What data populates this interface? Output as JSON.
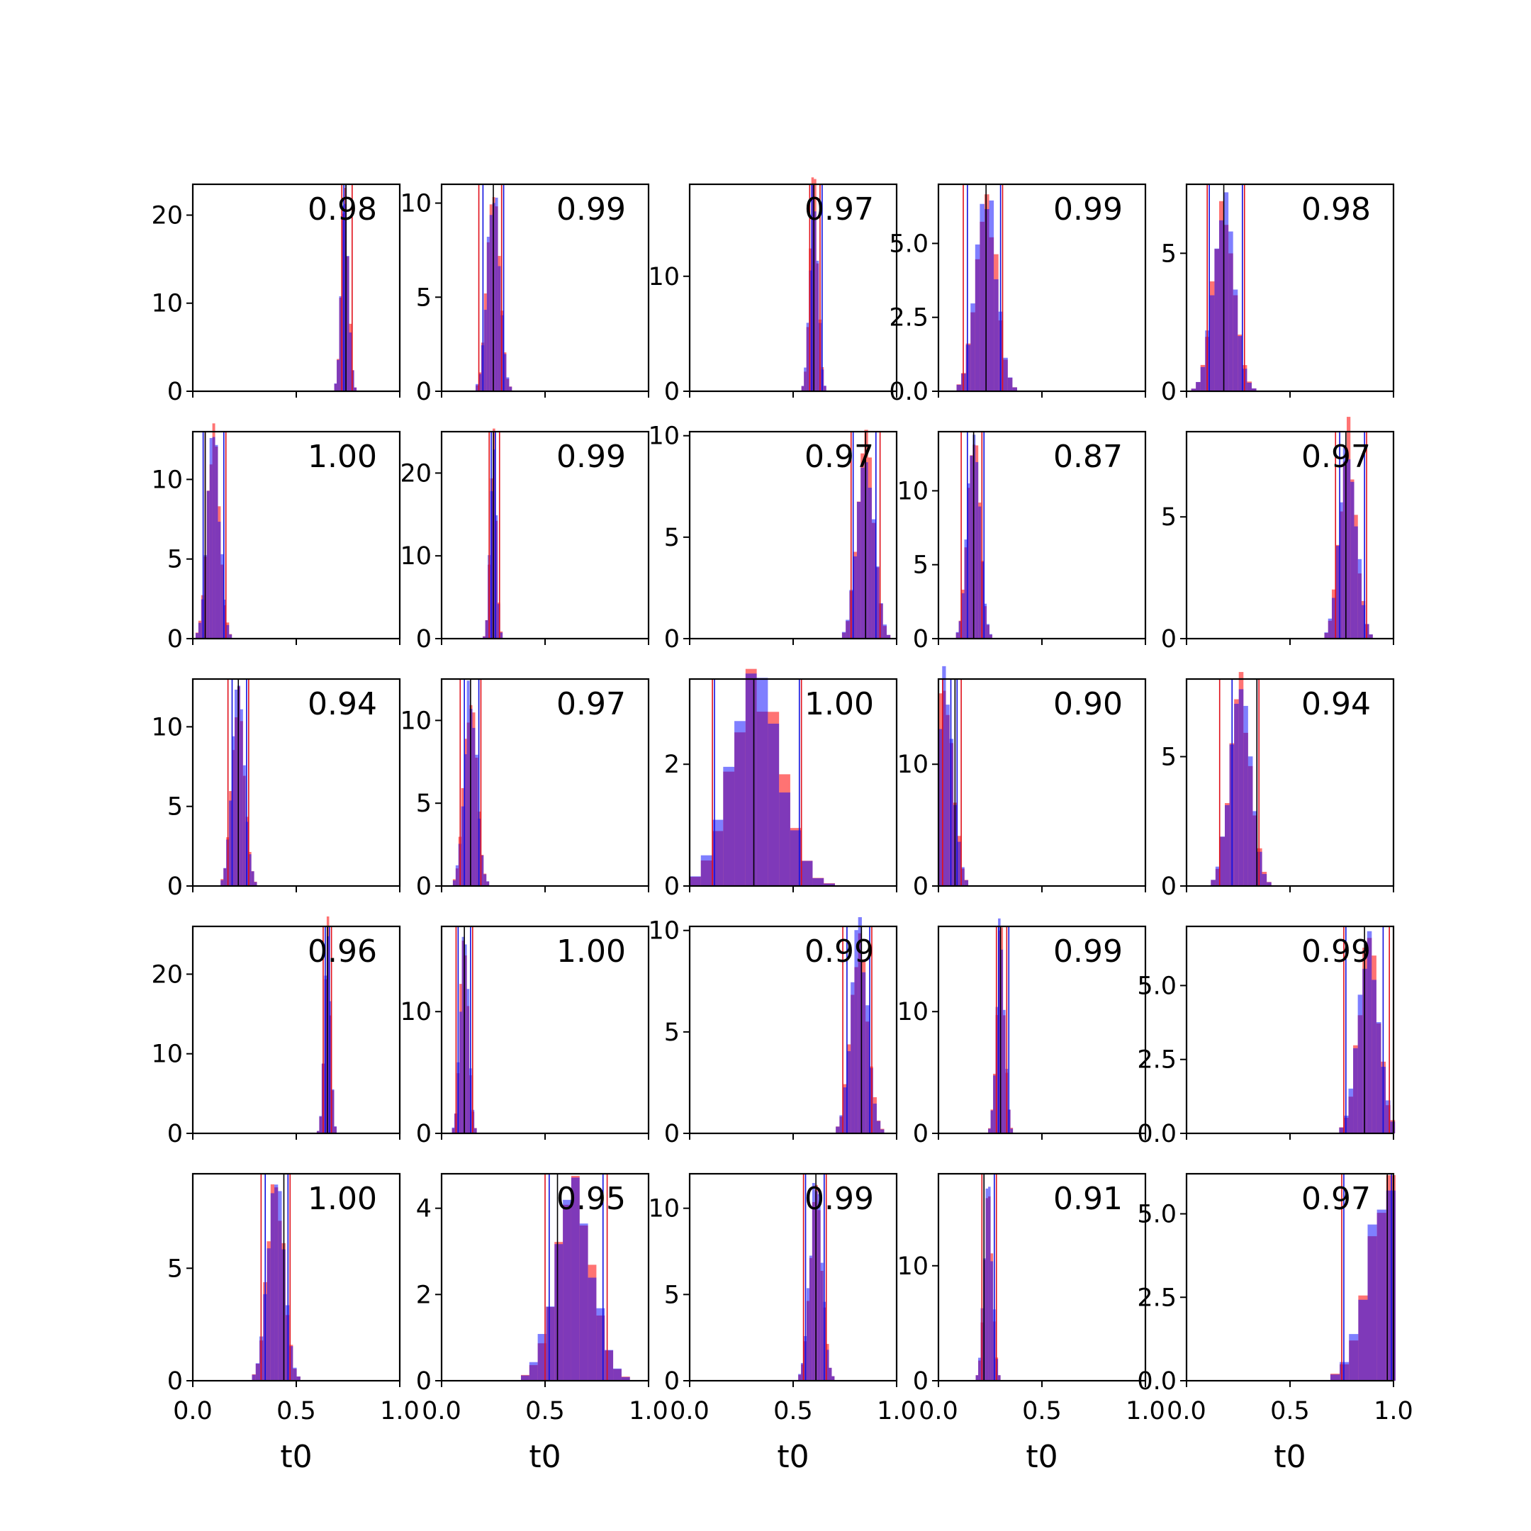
{
  "figure": {
    "xlabel": "t0",
    "colors": {
      "posterior_a": "#ff0000",
      "posterior_b": "#0000ff",
      "overlap": "#7b2bb9",
      "truth_line": "#000000",
      "interval_a": "#e0101a",
      "interval_b": "#1010e0"
    }
  },
  "chart_data": [
    {
      "type": "bar",
      "panel": 1,
      "annotation": "0.98",
      "xlim": [
        0,
        1
      ],
      "ylim": [
        0,
        23.5
      ],
      "yticks": [
        "0",
        "10",
        "20"
      ],
      "ytick_values": [
        0,
        10,
        20
      ],
      "xticks": [],
      "center": 0.735,
      "sd": 0.018,
      "peak": 22,
      "truth": 0.74,
      "red_lines": [
        0.72,
        0.77
      ],
      "blue_lines": [
        0.73,
        0.74
      ]
    },
    {
      "type": "bar",
      "panel": 2,
      "annotation": "0.99",
      "xlim": [
        0,
        1
      ],
      "ylim": [
        0,
        11
      ],
      "yticks": [
        "0",
        "5",
        "10"
      ],
      "ytick_values": [
        0,
        5,
        10
      ],
      "xticks": [],
      "center": 0.25,
      "sd": 0.03,
      "peak": 10.8,
      "truth": 0.25,
      "red_lines": [
        0.18,
        0.29
      ],
      "blue_lines": [
        0.2,
        0.3
      ]
    },
    {
      "type": "bar",
      "panel": 3,
      "annotation": "0.97",
      "xlim": [
        0,
        1
      ],
      "ylim": [
        0,
        18
      ],
      "yticks": [
        "0",
        "10"
      ],
      "ytick_values": [
        0,
        10
      ],
      "xticks": [],
      "center": 0.6,
      "sd": 0.02,
      "peak": 17.5,
      "truth": 0.6,
      "red_lines": [
        0.58,
        0.63
      ],
      "blue_lines": [
        0.59,
        0.64
      ]
    },
    {
      "type": "bar",
      "panel": 4,
      "annotation": "0.99",
      "xlim": [
        0,
        1
      ],
      "ylim": [
        0,
        7
      ],
      "yticks": [
        "0.0",
        "2.5",
        "5.0"
      ],
      "ytick_values": [
        0,
        2.5,
        5
      ],
      "xticks": [],
      "center": 0.23,
      "sd": 0.05,
      "peak": 6.7,
      "truth": 0.23,
      "red_lines": [
        0.12,
        0.31
      ],
      "blue_lines": [
        0.14,
        0.3
      ]
    },
    {
      "type": "bar",
      "panel": 5,
      "annotation": "0.98",
      "xlim": [
        0,
        1
      ],
      "ylim": [
        0,
        7.5
      ],
      "yticks": [
        "0",
        "5"
      ],
      "ytick_values": [
        0,
        5
      ],
      "xticks": [],
      "center": 0.18,
      "sd": 0.05,
      "peak": 7.0,
      "truth": 0.18,
      "red_lines": [
        0.1,
        0.28
      ],
      "blue_lines": [
        0.11,
        0.27
      ]
    },
    {
      "type": "bar",
      "panel": 6,
      "annotation": "1.00",
      "xlim": [
        0,
        1
      ],
      "ylim": [
        0,
        13
      ],
      "yticks": [
        "0",
        "5",
        "10"
      ],
      "ytick_values": [
        0,
        5,
        10
      ],
      "xticks": [],
      "center": 0.1,
      "sd": 0.03,
      "peak": 12.5,
      "truth": 0.06,
      "red_lines": [
        0.06,
        0.16
      ],
      "blue_lines": [
        0.05,
        0.15
      ]
    },
    {
      "type": "bar",
      "panel": 7,
      "annotation": "0.99",
      "xlim": [
        0,
        1
      ],
      "ylim": [
        0,
        25
      ],
      "yticks": [
        "0",
        "10",
        "20"
      ],
      "ytick_values": [
        0,
        10,
        20
      ],
      "xticks": [],
      "center": 0.25,
      "sd": 0.015,
      "peak": 24,
      "truth": 0.25,
      "red_lines": [
        0.23,
        0.28
      ],
      "blue_lines": [
        0.24,
        0.26
      ]
    },
    {
      "type": "bar",
      "panel": 8,
      "annotation": "0.97",
      "xlim": [
        0,
        1
      ],
      "ylim": [
        0,
        10.2
      ],
      "yticks": [
        "0",
        "5",
        "10"
      ],
      "ytick_values": [
        0,
        5,
        10
      ],
      "xticks": [],
      "center": 0.85,
      "sd": 0.04,
      "peak": 9.6,
      "truth": 0.85,
      "red_lines": [
        0.78,
        0.92
      ],
      "blue_lines": [
        0.79,
        0.9
      ]
    },
    {
      "type": "bar",
      "panel": 9,
      "annotation": "0.87",
      "xlim": [
        0,
        1
      ],
      "ylim": [
        0,
        14
      ],
      "yticks": [
        "0",
        "5",
        "10"
      ],
      "ytick_values": [
        0,
        5,
        10
      ],
      "xticks": [],
      "center": 0.17,
      "sd": 0.03,
      "peak": 13.5,
      "truth": 0.17,
      "red_lines": [
        0.11,
        0.21
      ],
      "blue_lines": [
        0.14,
        0.22
      ]
    },
    {
      "type": "bar",
      "panel": 10,
      "annotation": "0.97",
      "xlim": [
        0,
        1
      ],
      "ylim": [
        0,
        8.5
      ],
      "yticks": [
        "0",
        "5"
      ],
      "ytick_values": [
        0,
        5
      ],
      "xticks": [],
      "center": 0.78,
      "sd": 0.04,
      "peak": 8.2,
      "truth": 0.77,
      "red_lines": [
        0.72,
        0.87
      ],
      "blue_lines": [
        0.74,
        0.86
      ]
    },
    {
      "type": "bar",
      "panel": 11,
      "annotation": "0.94",
      "xlim": [
        0,
        1
      ],
      "ylim": [
        0,
        13
      ],
      "yticks": [
        "0",
        "5",
        "10"
      ],
      "ytick_values": [
        0,
        5,
        10
      ],
      "xticks": [],
      "center": 0.22,
      "sd": 0.03,
      "peak": 12.4,
      "truth": 0.22,
      "red_lines": [
        0.17,
        0.27
      ],
      "blue_lines": [
        0.19,
        0.26
      ]
    },
    {
      "type": "bar",
      "panel": 12,
      "annotation": "0.97",
      "xlim": [
        0,
        1
      ],
      "ylim": [
        0,
        12.5
      ],
      "yticks": [
        "0",
        "5",
        "10"
      ],
      "ytick_values": [
        0,
        5,
        10
      ],
      "xticks": [],
      "center": 0.14,
      "sd": 0.03,
      "peak": 12,
      "truth": 0.14,
      "red_lines": [
        0.09,
        0.19
      ],
      "blue_lines": [
        0.11,
        0.18
      ]
    },
    {
      "type": "bar",
      "panel": 13,
      "annotation": "1.00",
      "xlim": [
        0,
        1
      ],
      "ylim": [
        0,
        3.4
      ],
      "yticks": [
        "0",
        "2"
      ],
      "ytick_values": [
        0,
        2
      ],
      "xticks": [],
      "center": 0.32,
      "sd": 0.12,
      "peak": 3.3,
      "truth": 0.31,
      "red_lines": [
        0.11,
        0.54
      ],
      "blue_lines": [
        0.12,
        0.53
      ]
    },
    {
      "type": "bar",
      "panel": 14,
      "annotation": "0.90",
      "xlim": [
        0,
        1
      ],
      "ylim": [
        0,
        17
      ],
      "yticks": [
        "0",
        "10"
      ],
      "ytick_values": [
        0,
        10
      ],
      "xticks": [],
      "center": 0.03,
      "sd": 0.04,
      "peak": 16.5,
      "truth": 0.08,
      "red_lines": [
        0.02,
        0.11
      ],
      "blue_lines": [
        0.06,
        0.09
      ]
    },
    {
      "type": "bar",
      "panel": 15,
      "annotation": "0.94",
      "xlim": [
        0,
        1
      ],
      "ylim": [
        0,
        8
      ],
      "yticks": [
        "0",
        "5"
      ],
      "ytick_values": [
        0,
        5
      ],
      "xticks": [],
      "center": 0.26,
      "sd": 0.05,
      "peak": 7.6,
      "truth": 0.34,
      "red_lines": [
        0.16,
        0.35
      ],
      "blue_lines": [
        0.22,
        0.34
      ]
    },
    {
      "type": "bar",
      "panel": 16,
      "annotation": "0.96",
      "xlim": [
        0,
        1
      ],
      "ylim": [
        0,
        26
      ],
      "yticks": [
        "0",
        "10",
        "20"
      ],
      "ytick_values": [
        0,
        10,
        20
      ],
      "xticks": [],
      "center": 0.65,
      "sd": 0.015,
      "peak": 25,
      "truth": 0.65,
      "red_lines": [
        0.63,
        0.67
      ],
      "blue_lines": [
        0.64,
        0.66
      ]
    },
    {
      "type": "bar",
      "panel": 17,
      "annotation": "1.00",
      "xlim": [
        0,
        1
      ],
      "ylim": [
        0,
        17
      ],
      "yticks": [
        "0",
        "10"
      ],
      "ytick_values": [
        0,
        10
      ],
      "xticks": [],
      "center": 0.11,
      "sd": 0.02,
      "peak": 16.5,
      "truth": 0.11,
      "red_lines": [
        0.07,
        0.15
      ],
      "blue_lines": [
        0.08,
        0.14
      ]
    },
    {
      "type": "bar",
      "panel": 18,
      "annotation": "0.99",
      "xlim": [
        0,
        1
      ],
      "ylim": [
        0,
        10.2
      ],
      "yticks": [
        "0",
        "5",
        "10"
      ],
      "ytick_values": [
        0,
        5,
        10
      ],
      "xticks": [],
      "center": 0.82,
      "sd": 0.04,
      "peak": 9.6,
      "truth": 0.83,
      "red_lines": [
        0.74,
        0.88
      ],
      "blue_lines": [
        0.76,
        0.87
      ]
    },
    {
      "type": "bar",
      "panel": 19,
      "annotation": "0.99",
      "xlim": [
        0,
        1
      ],
      "ylim": [
        0,
        17
      ],
      "yticks": [
        "0",
        "10"
      ],
      "ytick_values": [
        0,
        10
      ],
      "xticks": [],
      "center": 0.3,
      "sd": 0.02,
      "peak": 16.5,
      "truth": 0.3,
      "red_lines": [
        0.28,
        0.33
      ],
      "blue_lines": [
        0.29,
        0.34
      ]
    },
    {
      "type": "bar",
      "panel": 20,
      "annotation": "0.99",
      "xlim": [
        0,
        1
      ],
      "ylim": [
        0,
        7
      ],
      "yticks": [
        "0.0",
        "2.5",
        "5.0"
      ],
      "ytick_values": [
        0,
        2.5,
        5
      ],
      "xticks": [],
      "center": 0.88,
      "sd": 0.05,
      "peak": 6.2,
      "truth": 0.86,
      "red_lines": [
        0.76,
        0.98
      ],
      "blue_lines": [
        0.77,
        0.95
      ]
    },
    {
      "type": "bar",
      "panel": 21,
      "annotation": "1.00",
      "xlim": [
        0,
        1
      ],
      "ylim": [
        0,
        9.2
      ],
      "yticks": [
        "0",
        "5"
      ],
      "ytick_values": [
        0,
        5
      ],
      "xticks": [
        "0.0",
        "0.5",
        "1.0"
      ],
      "center": 0.4,
      "sd": 0.04,
      "peak": 8.9,
      "truth": 0.44,
      "red_lines": [
        0.33,
        0.47
      ],
      "blue_lines": [
        0.35,
        0.46
      ]
    },
    {
      "type": "bar",
      "panel": 22,
      "annotation": "0.95",
      "xlim": [
        0,
        1
      ],
      "ylim": [
        0,
        4.8
      ],
      "yticks": [
        "0",
        "2",
        "4"
      ],
      "ytick_values": [
        0,
        2,
        4
      ],
      "xticks": [
        "0.0",
        "0.5",
        "1.0"
      ],
      "center": 0.64,
      "sd": 0.09,
      "peak": 4.3,
      "truth": 0.56,
      "red_lines": [
        0.5,
        0.8
      ],
      "blue_lines": [
        0.52,
        0.78
      ]
    },
    {
      "type": "bar",
      "panel": 23,
      "annotation": "0.99",
      "xlim": [
        0,
        1
      ],
      "ylim": [
        0,
        12
      ],
      "yticks": [
        "0",
        "5",
        "10"
      ],
      "ytick_values": [
        0,
        5,
        10
      ],
      "xticks": [
        "0.0",
        "0.5",
        "1.0"
      ],
      "center": 0.61,
      "sd": 0.03,
      "peak": 11.3,
      "truth": 0.61,
      "red_lines": [
        0.55,
        0.66
      ],
      "blue_lines": [
        0.56,
        0.65
      ]
    },
    {
      "type": "bar",
      "panel": 24,
      "annotation": "0.91",
      "xlim": [
        0,
        1
      ],
      "ylim": [
        0,
        18
      ],
      "yticks": [
        "0",
        "10"
      ],
      "ytick_values": [
        0,
        10
      ],
      "xticks": [
        "0.0",
        "0.5",
        "1.0"
      ],
      "center": 0.24,
      "sd": 0.02,
      "peak": 17.5,
      "truth": 0.22,
      "red_lines": [
        0.21,
        0.28
      ],
      "blue_lines": [
        0.22,
        0.27
      ]
    },
    {
      "type": "bar",
      "panel": 25,
      "annotation": "0.97",
      "xlim": [
        0,
        1
      ],
      "ylim": [
        0,
        6.2
      ],
      "yticks": [
        "0.0",
        "2.5",
        "5.0"
      ],
      "ytick_values": [
        0,
        2.5,
        5
      ],
      "xticks": [
        "0.0",
        "0.5",
        "1.0"
      ],
      "center": 0.98,
      "sd": 0.1,
      "peak": 5.9,
      "truth": 0.97,
      "red_lines": [
        0.75,
        1.0
      ],
      "blue_lines": [
        0.76,
        0.99
      ]
    }
  ]
}
